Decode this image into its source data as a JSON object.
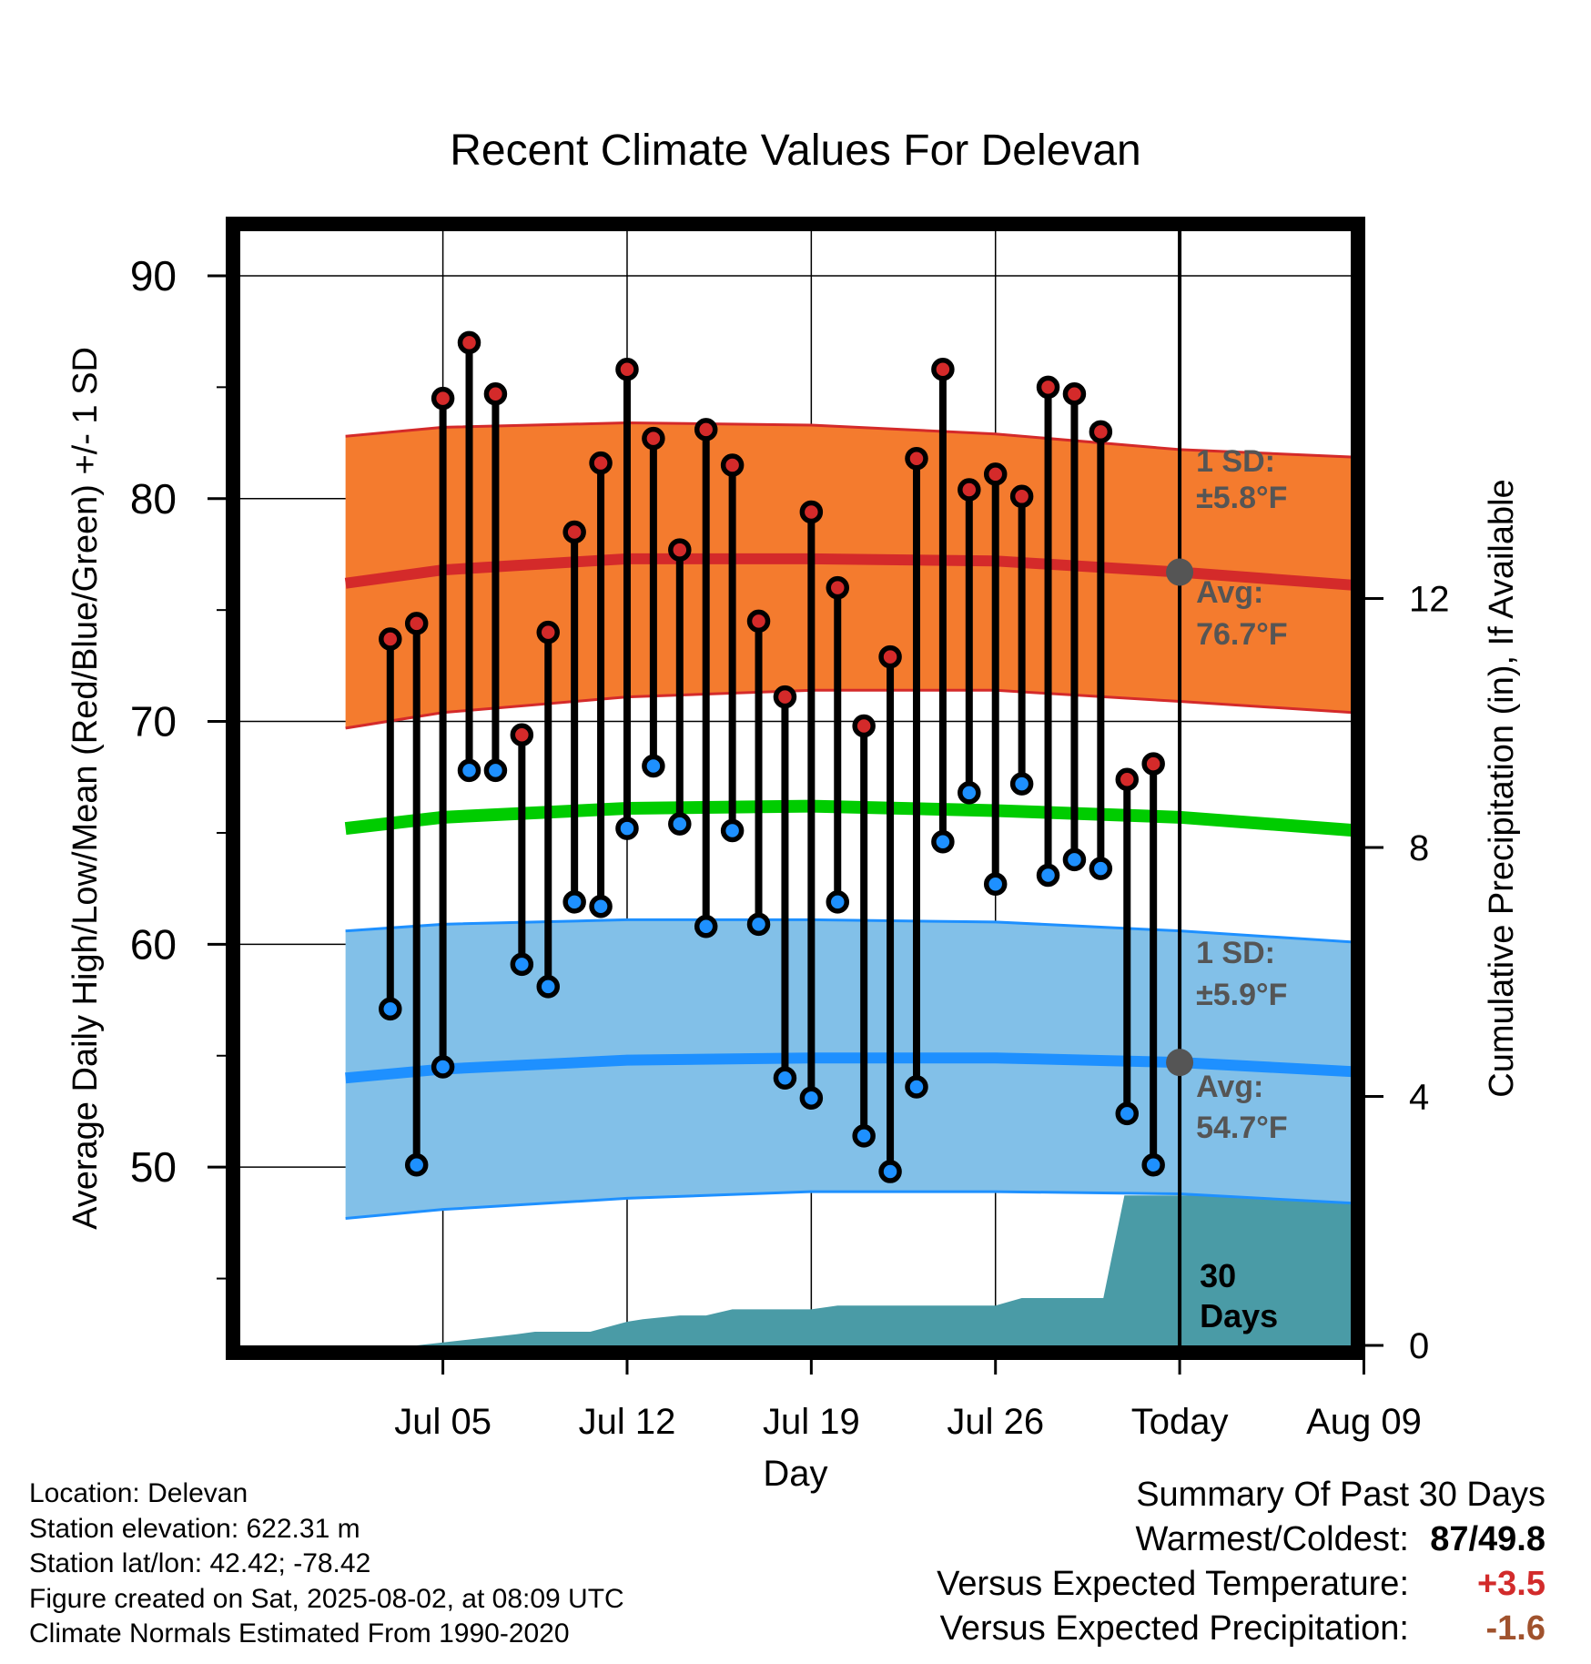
{
  "chart_data": {
    "type": "line",
    "title": "Recent Climate Values For Delevan",
    "xlabel": "Day",
    "ylabel": "Average Daily High/Low/Mean (Red/Blue/Green) +/- 1 SD",
    "y2label": "Cumulative Precipitation (in), If Available",
    "ylim": [
      42,
      92
    ],
    "y2lim": [
      0,
      17.9
    ],
    "x_day_range": [
      -2.7,
      39.5
    ],
    "x_ticks": [
      {
        "day": 5,
        "label": "Jul 05"
      },
      {
        "day": 12,
        "label": "Jul 12"
      },
      {
        "day": 19,
        "label": "Jul 19"
      },
      {
        "day": 26,
        "label": "Jul 26"
      },
      {
        "day": 33,
        "label": "Today"
      },
      {
        "day": 40,
        "label": "Aug 09"
      }
    ],
    "y_ticks": [
      50,
      60,
      70,
      80,
      90
    ],
    "y2_ticks": [
      0,
      4,
      8,
      12
    ],
    "grid": true,
    "today_day": 33,
    "normals": {
      "days": [
        1.3,
        5,
        12,
        19,
        26,
        33,
        40.9
      ],
      "avg_high": [
        76.2,
        76.8,
        77.3,
        77.3,
        77.2,
        76.7,
        76.0
      ],
      "high_plus_sd": [
        82.8,
        83.2,
        83.4,
        83.3,
        82.9,
        82.2,
        81.8
      ],
      "high_minus_sd": [
        69.7,
        70.4,
        71.1,
        71.4,
        71.4,
        70.9,
        70.3
      ],
      "avg_low": [
        54.0,
        54.4,
        54.8,
        54.9,
        54.9,
        54.7,
        54.2
      ],
      "low_plus_sd": [
        60.6,
        60.9,
        61.1,
        61.1,
        61.0,
        60.6,
        60.0
      ],
      "low_minus_sd": [
        47.7,
        48.1,
        48.6,
        48.9,
        48.9,
        48.8,
        48.3
      ],
      "avg_mean": [
        65.2,
        65.7,
        66.1,
        66.2,
        66.0,
        65.7,
        65.0
      ]
    },
    "series": [
      {
        "name": "High",
        "days": [
          3,
          4,
          5,
          6,
          7,
          8,
          9,
          10,
          11,
          12,
          13,
          14,
          15,
          16,
          17,
          18,
          19,
          20,
          21,
          22,
          23,
          24,
          25,
          26,
          27,
          28,
          29,
          30,
          31,
          32
        ],
        "values": [
          73.7,
          74.4,
          84.5,
          87.0,
          84.7,
          69.4,
          74.0,
          78.5,
          81.6,
          85.8,
          82.7,
          77.7,
          83.1,
          81.5,
          74.5,
          71.1,
          79.4,
          76.0,
          69.8,
          72.9,
          81.8,
          85.8,
          80.4,
          81.1,
          80.1,
          85.0,
          84.7,
          83.0,
          67.4,
          68.1
        ]
      },
      {
        "name": "Low",
        "days": [
          3,
          4,
          5,
          6,
          7,
          8,
          9,
          10,
          11,
          12,
          13,
          14,
          15,
          16,
          17,
          18,
          19,
          20,
          21,
          22,
          23,
          24,
          25,
          26,
          27,
          28,
          29,
          30,
          31,
          32
        ],
        "values": [
          57.1,
          50.1,
          54.5,
          67.8,
          67.8,
          59.1,
          58.1,
          61.9,
          61.7,
          65.2,
          68.0,
          65.4,
          60.8,
          65.1,
          60.9,
          54.0,
          53.1,
          61.9,
          51.4,
          49.8,
          53.6,
          64.6,
          66.8,
          62.7,
          67.2,
          63.1,
          63.8,
          63.4,
          52.4,
          50.1
        ]
      },
      {
        "name": "Precipitation",
        "days": [
          1.3,
          3.4,
          4.0,
          7.8,
          8.5,
          10.6,
          12.0,
          12.6,
          14.0,
          15.0,
          16.0,
          18.2,
          19.0,
          20.0,
          21.3,
          22.4,
          26.0,
          27.0,
          27.6,
          30.1,
          30.9,
          40.9
        ],
        "values": [
          0.0,
          0.0,
          0.0,
          0.18,
          0.22,
          0.22,
          0.38,
          0.42,
          0.48,
          0.48,
          0.58,
          0.58,
          0.58,
          0.64,
          0.64,
          0.64,
          0.64,
          0.76,
          0.76,
          0.76,
          2.41,
          2.41
        ]
      }
    ],
    "annotations": {
      "high_sd_label": "1 SD:",
      "high_sd_value": "±5.8°F",
      "high_avg_label": "Avg:",
      "high_avg_value": "76.7°F",
      "low_sd_label": "1 SD:",
      "low_sd_value": "±5.9°F",
      "low_avg_label": "Avg:",
      "low_avg_value": "54.7°F",
      "days_label_line1": "30",
      "days_label_line2": "Days"
    },
    "colors": {
      "high_band": "#f47b2e",
      "high_line": "#d42a2a",
      "low_band": "#82c0e8",
      "low_line": "#1e90ff",
      "mean_line": "#00cc00",
      "precip": "#4a9ba6",
      "high_dot": "#d42a2a",
      "low_dot": "#1e90ff",
      "annotation": "#555555"
    }
  },
  "info": {
    "location": "Location: Delevan",
    "elevation": "Station elevation: 622.31 m",
    "latlon": "Station lat/lon: 42.42; -78.42",
    "created": "Figure created on Sat, 2025-08-02, at 08:09 UTC",
    "normals": "Climate Normals Estimated From 1990-2020"
  },
  "summary": {
    "title": "Summary Of Past 30 Days",
    "warmest_label": "Warmest/Coldest:",
    "warmest_value": "87/49.8",
    "temp_label": "Versus Expected Temperature:",
    "temp_value": "+3.5",
    "precip_label": "Versus Expected Precipitation:",
    "precip_value": "-1.6"
  }
}
